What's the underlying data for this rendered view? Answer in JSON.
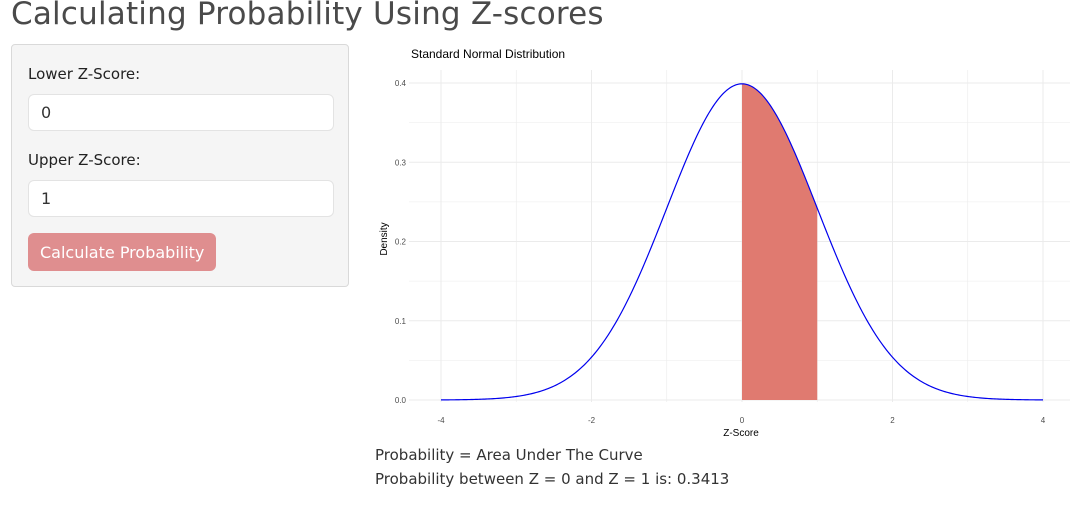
{
  "page": {
    "title": "Calculating Probability Using Z-scores"
  },
  "sidebar": {
    "lower_label": "Lower Z-Score:",
    "lower_value": "0",
    "upper_label": "Upper Z-Score:",
    "upper_value": "1",
    "button_label": "Calculate Probability"
  },
  "results": {
    "line1": "Probability = Area Under The Curve",
    "line2": "Probability between Z = 0 and Z = 1 is: 0.3413"
  },
  "colors": {
    "curve": "#0000ee",
    "shaded_area": "#e07a70",
    "button": "#df8e8f",
    "grid": "#ebebeb"
  },
  "chart_data": {
    "type": "area",
    "title": "Standard Normal Distribution",
    "xlabel": "Z-Score",
    "ylabel": "Density",
    "xlim": [
      -4,
      4
    ],
    "ylim": [
      0,
      0.4
    ],
    "x_ticks": [
      "-4",
      "-2",
      "0",
      "2",
      "4"
    ],
    "y_ticks": [
      "0.0",
      "0.1",
      "0.2",
      "0.3",
      "0.4"
    ],
    "grid": true,
    "curve": "standard normal density",
    "shaded_range": [
      0,
      1
    ],
    "series": [
      {
        "x": [
          -4,
          -3.5,
          -3,
          -2.5,
          -2,
          -1.5,
          -1,
          -0.5,
          0,
          0.5,
          1,
          1.5,
          2,
          2.5,
          3,
          3.5,
          4
        ],
        "values": [
          0.0001,
          0.0009,
          0.0044,
          0.0175,
          0.054,
          0.1295,
          0.242,
          0.3521,
          0.3989,
          0.3521,
          0.242,
          0.1295,
          0.054,
          0.0175,
          0.0044,
          0.0009,
          0.0001
        ]
      }
    ]
  }
}
